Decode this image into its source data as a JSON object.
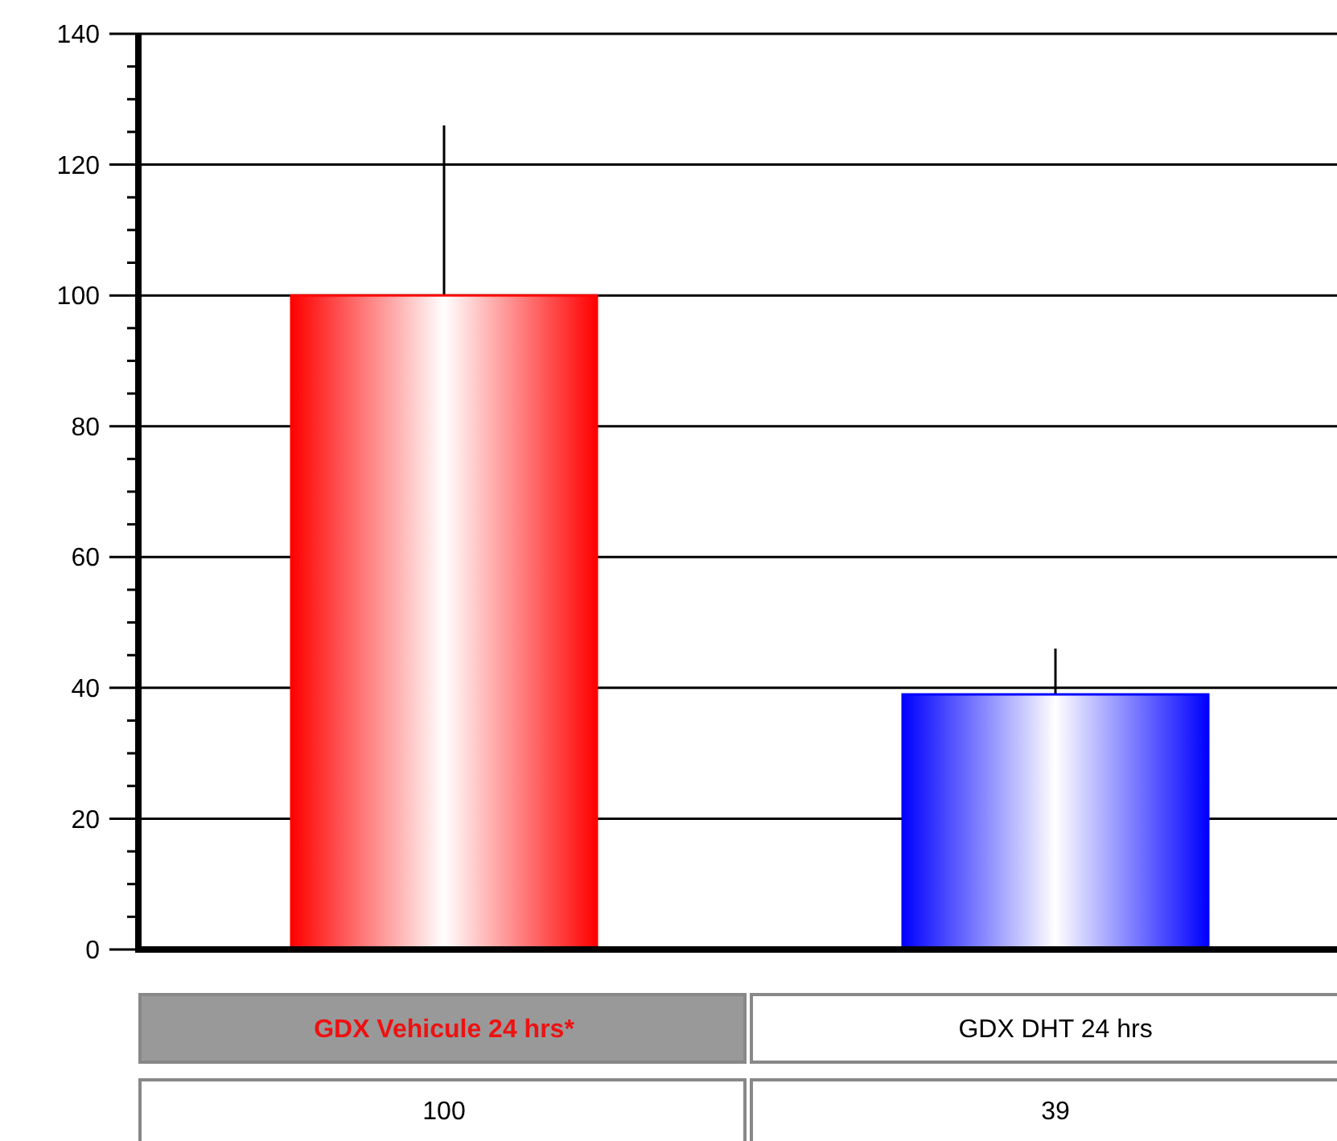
{
  "chart_data": {
    "type": "bar",
    "categories": [
      "GDX Vehicule 24 hrs*",
      "GDX DHT 24 hrs"
    ],
    "values": [
      100,
      39
    ],
    "colors": [
      "#ff0000",
      "#0000ff"
    ],
    "errors": [
      [
        100,
        126
      ],
      [
        39,
        46
      ]
    ],
    "ylim": [
      0,
      140
    ],
    "yticks": [
      0,
      {
        "value": 5,
        "label": null
      },
      {
        "value": 10,
        "label": null
      },
      {
        "value": 15,
        "label": null
      },
      20,
      {
        "value": 25,
        "label": null
      },
      {
        "value": 30,
        "label": null
      },
      {
        "value": 35,
        "label": null
      },
      40,
      {
        "value": 45,
        "label": null
      },
      {
        "value": 50,
        "label": null
      },
      {
        "value": 55,
        "label": null
      },
      60,
      {
        "value": 65,
        "label": null
      },
      {
        "value": 70,
        "label": null
      },
      {
        "value": 75,
        "label": null
      },
      80,
      {
        "value": 85,
        "label": null
      },
      {
        "value": 90,
        "label": null
      },
      {
        "value": 95,
        "label": null
      },
      100,
      {
        "value": 105,
        "label": null
      },
      {
        "value": 110,
        "label": null
      },
      {
        "value": 115,
        "label": null
      },
      120,
      {
        "value": 125,
        "label": null
      },
      {
        "value": 130,
        "label": null
      },
      {
        "value": 135,
        "label": null
      },
      140
    ],
    "grid": "y",
    "data_labels": true
  }
}
